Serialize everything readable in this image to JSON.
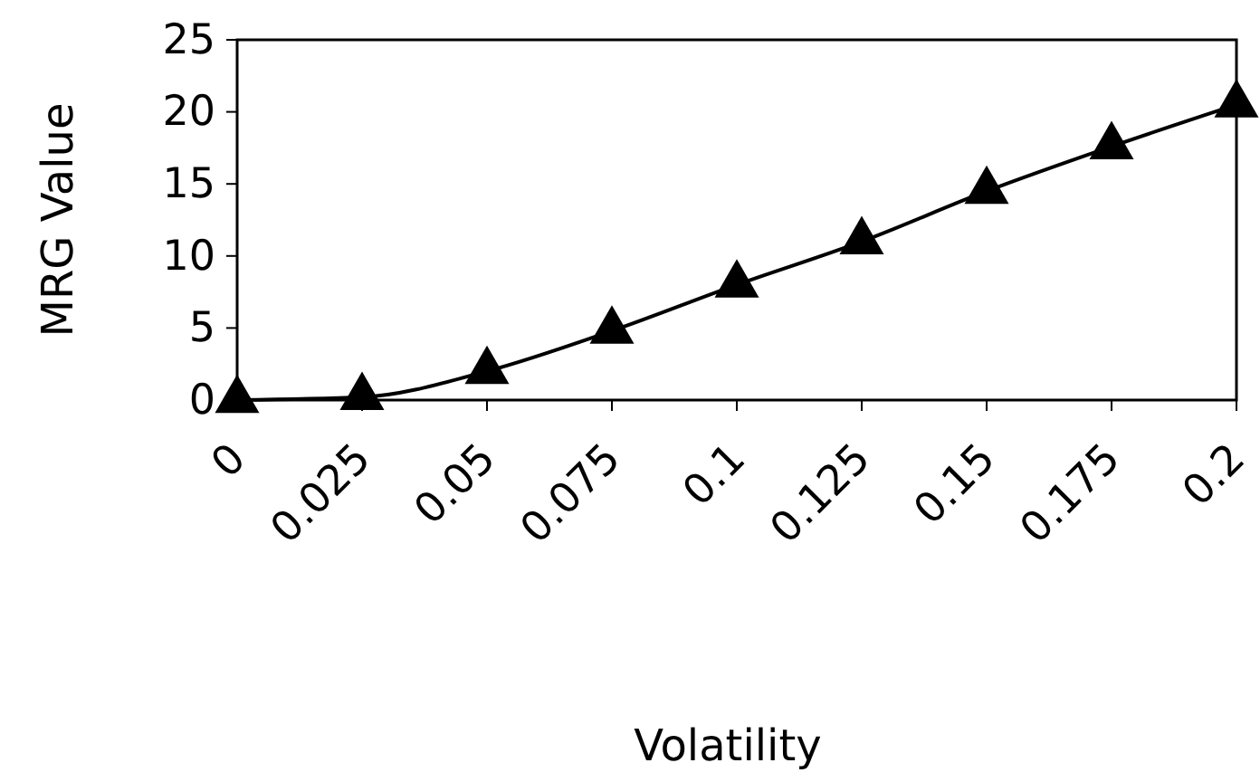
{
  "chart_data": {
    "type": "line",
    "xlabel": "Volatility",
    "ylabel": "MRG Value",
    "x": [
      0,
      0.025,
      0.05,
      0.075,
      0.1,
      0.125,
      0.15,
      0.175,
      0.2
    ],
    "series": [
      {
        "color": "#000000",
        "values": [
          0,
          0.2,
          2.0,
          4.8,
          8.0,
          11.0,
          14.5,
          17.6,
          20.5
        ]
      }
    ],
    "xlim": [
      0,
      0.2
    ],
    "xticks": [
      0,
      0.025,
      0.05,
      0.075,
      0.1,
      0.125,
      0.15,
      0.175,
      0.2
    ],
    "ylim": [
      0,
      25
    ],
    "yticks": [
      0,
      5,
      10,
      15,
      20,
      25
    ],
    "marker": "triangle",
    "line_style": "solid",
    "grid": false
  }
}
